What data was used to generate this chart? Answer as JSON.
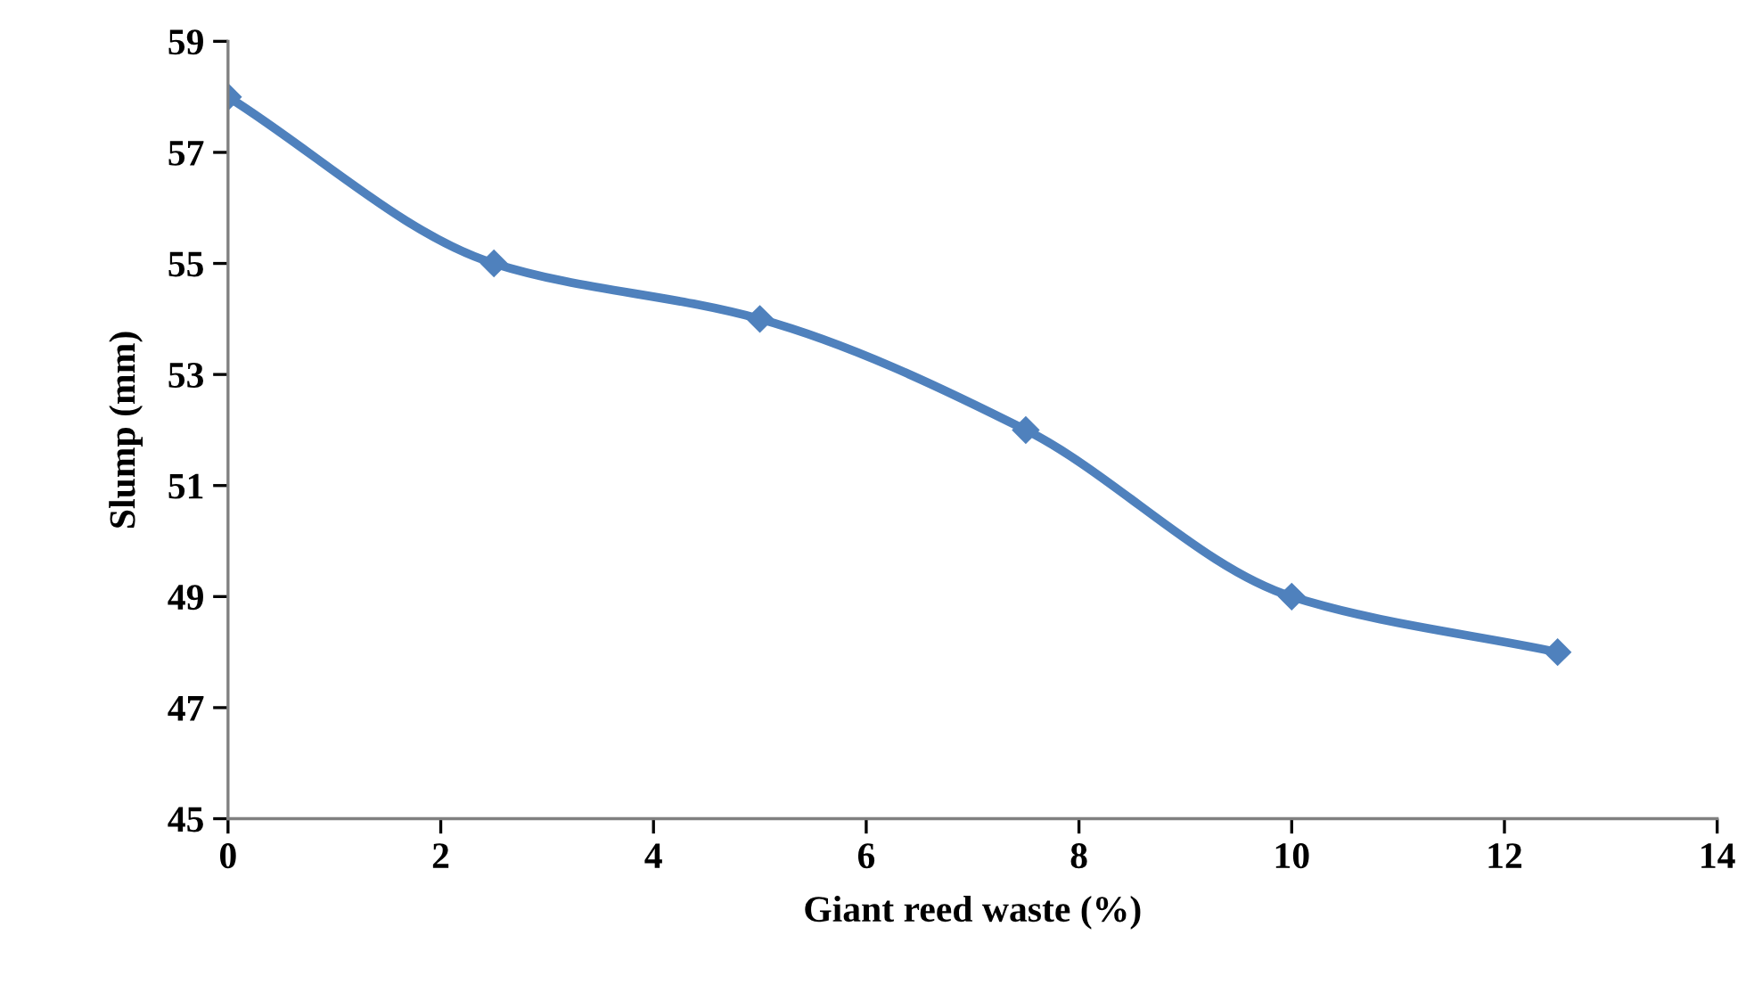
{
  "chart_data": {
    "type": "line",
    "xlabel": "Giant reed waste (%)",
    "ylabel": "Slump (mm)",
    "x": [
      0,
      2.5,
      5,
      7.5,
      10,
      12.5
    ],
    "series": [
      {
        "color": "#4f81bd",
        "values": [
          58,
          55,
          54,
          52,
          49,
          48
        ]
      }
    ],
    "xlim": [
      0,
      14
    ],
    "xticks": [
      0,
      2,
      4,
      6,
      8,
      10,
      12,
      14
    ],
    "ylim": [
      45,
      59
    ],
    "yticks": [
      45,
      47,
      49,
      51,
      53,
      55,
      57,
      59
    ],
    "marker": "diamond",
    "line_style": "solid",
    "grid": false,
    "legend": false
  }
}
